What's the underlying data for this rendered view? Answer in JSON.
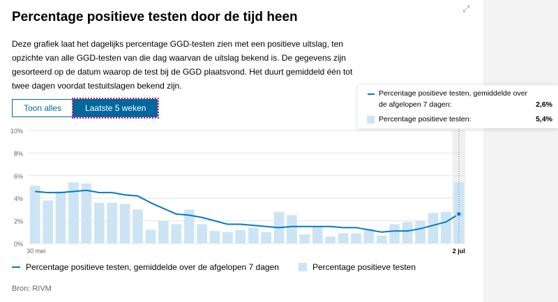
{
  "title": "Percentage positieve testen door de tijd heen",
  "description": "Deze grafiek laat het dagelijks percentage GGD-testen zien met een positieve uitslag, ten opzichte van alle GGD-testen van die dag waarvan de uitslag bekend is. De gegevens zijn gesorteerd op de datum waarop de test bij de GGD plaatsvond. Het duurt gemiddeld één tot twee dagen voordat testuitslagen bekend zijn.",
  "tabs": [
    {
      "label": "Toon alles"
    },
    {
      "label": "Laatste 5 weken",
      "active": true
    }
  ],
  "source": "Bron: RIVM",
  "colors": {
    "line": "#007bc7",
    "bar": "#cde4f4",
    "accent": "#01689b"
  },
  "tooltip": {
    "line_label": "Percentage positieve testen, gemiddelde over de afgelopen 7 dagen:",
    "line_value": "2,6%",
    "bar_label": "Percentage positieve testen:",
    "bar_value": "5,4%"
  },
  "chart_data": {
    "type": "bar",
    "ylim": [
      0,
      10
    ],
    "yticks": [
      "0%",
      "2%",
      "4%",
      "6%",
      "8%",
      "10%"
    ],
    "xtick_labels": [
      "30 mei",
      "2 jul"
    ],
    "grid": true,
    "legend_position": "bottom",
    "series": [
      {
        "name": "Percentage positieve testen, gemiddelde over de afgelopen 7 dagen",
        "type": "line",
        "values": [
          4.6,
          4.5,
          4.5,
          4.6,
          4.7,
          4.5,
          4.5,
          4.3,
          4.2,
          3.6,
          3.1,
          2.6,
          2.5,
          2.3,
          2.0,
          1.7,
          1.7,
          1.6,
          1.5,
          1.4,
          1.5,
          1.5,
          1.5,
          1.5,
          1.4,
          1.4,
          1.2,
          1.0,
          1.1,
          1.1,
          1.3,
          1.6,
          1.9,
          2.6
        ]
      },
      {
        "name": "Percentage positieve testen",
        "type": "bar",
        "values": [
          5.1,
          3.8,
          4.6,
          5.4,
          5.3,
          3.6,
          3.6,
          3.5,
          3.0,
          1.2,
          2.0,
          1.7,
          3.0,
          1.7,
          1.1,
          1.0,
          1.2,
          1.4,
          1.0,
          2.8,
          2.5,
          0.8,
          1.5,
          0.6,
          0.9,
          0.9,
          1.3,
          0.7,
          1.7,
          1.9,
          2.0,
          2.7,
          2.8,
          5.4
        ]
      }
    ]
  }
}
